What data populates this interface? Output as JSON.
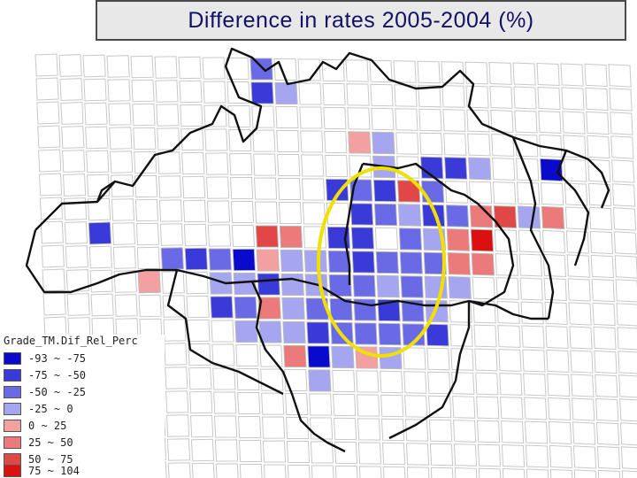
{
  "title": "Difference in rates 2005-2004 (%)",
  "legend": {
    "title": "Grade_TM.Dif_Rel_Perc",
    "classes": [
      {
        "label": "-93 ~ -75",
        "color": "#0a0acc"
      },
      {
        "label": "-75 ~ -50",
        "color": "#3a3ad8"
      },
      {
        "label": "-50 ~ -25",
        "color": "#6a6ae6"
      },
      {
        "label": "-25 ~ 0",
        "color": "#a6a6f0"
      },
      {
        "label": "0 ~ 25",
        "color": "#f2a0a0"
      },
      {
        "label": "25 ~ 50",
        "color": "#ec7a7a"
      },
      {
        "label": "50 ~ 75",
        "color": "#e04848"
      },
      {
        "label": "75 ~ 104",
        "color": "#dc1010"
      }
    ]
  },
  "highlight": {
    "shape": "ellipse",
    "color": "#f0e000"
  },
  "grid_cell_classes": [
    {
      "col": 9,
      "row": 0,
      "class": 2
    },
    {
      "col": 9,
      "row": 1,
      "class": 1
    },
    {
      "col": 10,
      "row": 1,
      "class": 3
    },
    {
      "col": 13,
      "row": 3,
      "class": 4
    },
    {
      "col": 14,
      "row": 4,
      "class": 3
    },
    {
      "col": 16,
      "row": 4,
      "class": 1
    },
    {
      "col": 17,
      "row": 4,
      "class": 1
    },
    {
      "col": 18,
      "row": 4,
      "class": 3
    },
    {
      "col": 21,
      "row": 4,
      "class": 0
    },
    {
      "col": 12,
      "row": 5,
      "class": 1
    },
    {
      "col": 13,
      "row": 5,
      "class": 2
    },
    {
      "col": 14,
      "row": 5,
      "class": 1
    },
    {
      "col": 15,
      "row": 5,
      "class": 6
    },
    {
      "col": 16,
      "row": 5,
      "class": 2
    },
    {
      "col": 13,
      "row": 6,
      "class": 1
    },
    {
      "col": 14,
      "row": 6,
      "class": 2
    },
    {
      "col": 15,
      "row": 6,
      "class": 3
    },
    {
      "col": 16,
      "row": 6,
      "class": 1
    },
    {
      "col": 17,
      "row": 6,
      "class": 2
    },
    {
      "col": 18,
      "row": 6,
      "class": 5
    },
    {
      "col": 19,
      "row": 6,
      "class": 6
    },
    {
      "col": 20,
      "row": 6,
      "class": 3
    },
    {
      "col": 21,
      "row": 6,
      "class": 5
    },
    {
      "col": 2,
      "row": 7,
      "class": 1
    },
    {
      "col": 9,
      "row": 7,
      "class": 6
    },
    {
      "col": 10,
      "row": 7,
      "class": 5
    },
    {
      "col": 12,
      "row": 7,
      "class": 1
    },
    {
      "col": 13,
      "row": 7,
      "class": 1
    },
    {
      "col": 14,
      "row": 3,
      "class": 3
    },
    {
      "col": 15,
      "row": 7,
      "class": 2
    },
    {
      "col": 16,
      "row": 7,
      "class": 3
    },
    {
      "col": 17,
      "row": 7,
      "class": 5
    },
    {
      "col": 18,
      "row": 7,
      "class": 7
    },
    {
      "col": 5,
      "row": 8,
      "class": 2
    },
    {
      "col": 6,
      "row": 8,
      "class": 1
    },
    {
      "col": 7,
      "row": 8,
      "class": 2
    },
    {
      "col": 8,
      "row": 8,
      "class": 0
    },
    {
      "col": 9,
      "row": 8,
      "class": 4
    },
    {
      "col": 10,
      "row": 8,
      "class": 3
    },
    {
      "col": 11,
      "row": 8,
      "class": 3
    },
    {
      "col": 12,
      "row": 8,
      "class": 2
    },
    {
      "col": 13,
      "row": 8,
      "class": 1
    },
    {
      "col": 14,
      "row": 8,
      "class": 2
    },
    {
      "col": 15,
      "row": 8,
      "class": 2
    },
    {
      "col": 16,
      "row": 8,
      "class": 2
    },
    {
      "col": 17,
      "row": 8,
      "class": 5
    },
    {
      "col": 18,
      "row": 8,
      "class": 5
    },
    {
      "col": 4,
      "row": 9,
      "class": 4
    },
    {
      "col": 7,
      "row": 9,
      "class": 3
    },
    {
      "col": 8,
      "row": 9,
      "class": 3
    },
    {
      "col": 9,
      "row": 9,
      "class": 1
    },
    {
      "col": 10,
      "row": 9,
      "class": 3
    },
    {
      "col": 11,
      "row": 9,
      "class": 3
    },
    {
      "col": 12,
      "row": 9,
      "class": 2
    },
    {
      "col": 13,
      "row": 9,
      "class": 2
    },
    {
      "col": 14,
      "row": 9,
      "class": 3
    },
    {
      "col": 15,
      "row": 9,
      "class": 2
    },
    {
      "col": 16,
      "row": 9,
      "class": 3
    },
    {
      "col": 17,
      "row": 9,
      "class": 3
    },
    {
      "col": 7,
      "row": 10,
      "class": 1
    },
    {
      "col": 8,
      "row": 10,
      "class": 2
    },
    {
      "col": 9,
      "row": 10,
      "class": 5
    },
    {
      "col": 10,
      "row": 10,
      "class": 3
    },
    {
      "col": 11,
      "row": 10,
      "class": 2
    },
    {
      "col": 12,
      "row": 10,
      "class": 2
    },
    {
      "col": 13,
      "row": 10,
      "class": 2
    },
    {
      "col": 14,
      "row": 10,
      "class": 1
    },
    {
      "col": 15,
      "row": 10,
      "class": 2
    },
    {
      "col": 16,
      "row": 10,
      "class": 3
    },
    {
      "col": 8,
      "row": 11,
      "class": 3
    },
    {
      "col": 9,
      "row": 11,
      "class": 3
    },
    {
      "col": 10,
      "row": 11,
      "class": 3
    },
    {
      "col": 11,
      "row": 11,
      "class": 1
    },
    {
      "col": 12,
      "row": 11,
      "class": 2
    },
    {
      "col": 13,
      "row": 11,
      "class": 2
    },
    {
      "col": 14,
      "row": 11,
      "class": 2
    },
    {
      "col": 15,
      "row": 11,
      "class": 2
    },
    {
      "col": 16,
      "row": 11,
      "class": 1
    },
    {
      "col": 10,
      "row": 12,
      "class": 5
    },
    {
      "col": 11,
      "row": 12,
      "class": 0
    },
    {
      "col": 12,
      "row": 12,
      "class": 3
    },
    {
      "col": 13,
      "row": 12,
      "class": 4
    },
    {
      "col": 14,
      "row": 12,
      "class": 3
    },
    {
      "col": 11,
      "row": 13,
      "class": 3
    }
  ]
}
